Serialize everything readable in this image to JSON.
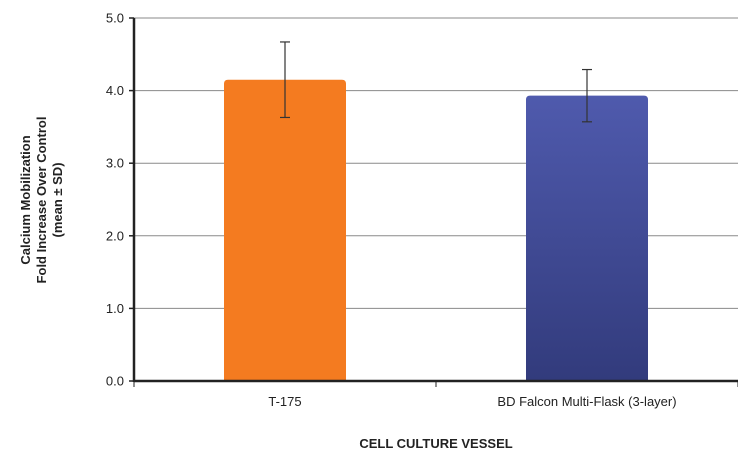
{
  "chart_data": {
    "type": "bar",
    "categories": [
      "T-175",
      "BD Falcon Multi-Flask (3-layer)"
    ],
    "values": [
      4.15,
      3.93
    ],
    "error": [
      0.52,
      0.36
    ],
    "colors": [
      "#f47b20",
      "#3f4a9c"
    ],
    "ylim": [
      0,
      5
    ],
    "yticks": [
      0,
      1,
      2,
      3,
      4,
      5
    ],
    "ytick_labels": [
      "0.0",
      "1.0",
      "2.0",
      "3.0",
      "4.0",
      "5.0"
    ],
    "xlabel": "CELL CULTURE VESSEL",
    "ylabel_lines": [
      "Calcium Mobilization",
      "Fold Increase Over Control",
      "(mean ± SD)"
    ],
    "grid": true
  }
}
